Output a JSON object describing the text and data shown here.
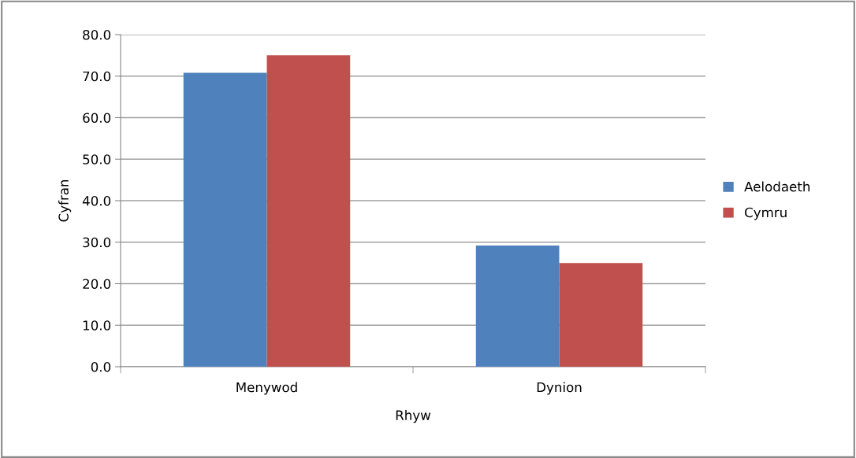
{
  "chart_data": {
    "type": "bar",
    "xlabel": "Rhyw",
    "ylabel": "Cyfran",
    "categories": [
      "Menywod",
      "Dynion"
    ],
    "series": [
      {
        "name": "Aelodaeth",
        "color": "#4f81bd",
        "values": [
          70.8,
          29.2
        ]
      },
      {
        "name": "Cymru",
        "color": "#c0504d",
        "values": [
          75.0,
          25.0
        ]
      }
    ],
    "ylim": [
      0,
      80
    ],
    "yticks": [
      {
        "value": 0,
        "label": "0.0"
      },
      {
        "value": 10,
        "label": "10.0"
      },
      {
        "value": 20,
        "label": "20.0"
      },
      {
        "value": 30,
        "label": "30.0"
      },
      {
        "value": 40,
        "label": "40.0"
      },
      {
        "value": 50,
        "label": "50.0"
      },
      {
        "value": 60,
        "label": "60.0"
      },
      {
        "value": 70,
        "label": "70.0"
      },
      {
        "value": 80,
        "label": "80.0"
      }
    ],
    "grid": "y",
    "legend": "right"
  }
}
